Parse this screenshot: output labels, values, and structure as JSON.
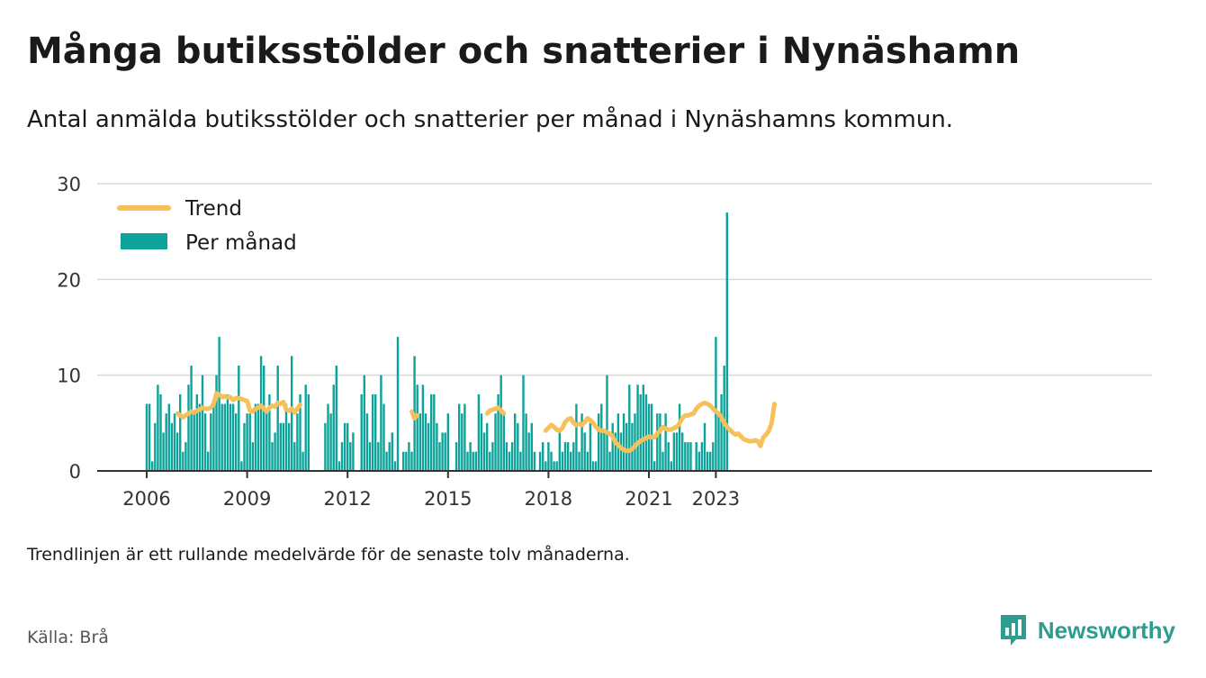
{
  "header": {
    "title": "Många butiksstölder och snatterier i Nynäshamn",
    "subtitle": "Antal anmälda butiksstölder och snatterier per månad i Nynäshamns kommun."
  },
  "footer": {
    "note": "Trendlinjen är ett rullande medelvärde för de senaste tolv månaderna.",
    "source": "Källa: Brå",
    "brand": "Newsworthy"
  },
  "colors": {
    "bars": "#0ea39a",
    "trend": "#f6c15a",
    "grid": "#d9d9d9",
    "axis": "#333333",
    "brand": "#2d9d8f"
  },
  "chart_data": {
    "type": "bar",
    "x_start": "2006-01",
    "x_unit": "month",
    "values": [
      7,
      7,
      1,
      5,
      9,
      8,
      4,
      6,
      7,
      5,
      6,
      4,
      8,
      2,
      3,
      9,
      11,
      6,
      8,
      7,
      10,
      6,
      2,
      6,
      7,
      10,
      14,
      7,
      7,
      8,
      7,
      7,
      6,
      11,
      1,
      5,
      6,
      6,
      3,
      7,
      7,
      12,
      11,
      6,
      8,
      3,
      4,
      11,
      5,
      5,
      7,
      5,
      12,
      3,
      6,
      8,
      2,
      9,
      8,
      0,
      0,
      0,
      0,
      0,
      5,
      7,
      6,
      9,
      11,
      1,
      3,
      5,
      5,
      3,
      4,
      0,
      0,
      8,
      10,
      6,
      3,
      8,
      8,
      3,
      10,
      7,
      2,
      3,
      4,
      1,
      14,
      0,
      2,
      2,
      3,
      2,
      12,
      9,
      6,
      9,
      6,
      5,
      8,
      8,
      5,
      3,
      4,
      4,
      6,
      0,
      0,
      3,
      7,
      6,
      7,
      2,
      3,
      2,
      2,
      8,
      6,
      4,
      5,
      2,
      3,
      6,
      8,
      10,
      6,
      3,
      2,
      3,
      6,
      5,
      2,
      10,
      6,
      4,
      5,
      2,
      0,
      2,
      3,
      1,
      3,
      2,
      1,
      1,
      4,
      2,
      3,
      3,
      2,
      3,
      7,
      2,
      6,
      4,
      2,
      5,
      1,
      1,
      6,
      7,
      4,
      10,
      2,
      5,
      4,
      6,
      4,
      6,
      5,
      9,
      5,
      6,
      9,
      8,
      9,
      8,
      7,
      7,
      1,
      6,
      6,
      2,
      6,
      3,
      1,
      4,
      4,
      7,
      4,
      3,
      3,
      3,
      0,
      3,
      2,
      3,
      5,
      2,
      2,
      3,
      14,
      6,
      8,
      11,
      27
    ],
    "trend": [
      null,
      null,
      null,
      null,
      null,
      null,
      null,
      null,
      null,
      null,
      null,
      6.0,
      5.8,
      5.6,
      5.8,
      6.0,
      6.2,
      6.1,
      6.3,
      6.4,
      6.6,
      6.5,
      6.5,
      6.6,
      7.0,
      8.1,
      8.0,
      7.7,
      7.8,
      7.7,
      7.7,
      7.4,
      7.6,
      7.6,
      7.5,
      7.4,
      7.3,
      6.3,
      6.2,
      6.5,
      6.6,
      6.8,
      6.5,
      6.2,
      6.6,
      6.8,
      6.7,
      7.1,
      7.0,
      7.2,
      6.4,
      6.3,
      6.5,
      6.1,
      6.5,
      6.9,
      null,
      null,
      null,
      null,
      null,
      null,
      null,
      null,
      null,
      null,
      null,
      null,
      null,
      null,
      null,
      null,
      null,
      null,
      null,
      null,
      null,
      null,
      null,
      null,
      null,
      null,
      null,
      null,
      null,
      null,
      null,
      null,
      null,
      null,
      null,
      null,
      null,
      null,
      null,
      6.2,
      5.5,
      5.8,
      null,
      null,
      null,
      null,
      null,
      null,
      null,
      null,
      null,
      null,
      null,
      null,
      null,
      null,
      null,
      null,
      null,
      null,
      null,
      null,
      null,
      null,
      null,
      null,
      6.0,
      6.3,
      6.4,
      6.5,
      6.6,
      6.3,
      6.0,
      null,
      null,
      null,
      null,
      null,
      null,
      null,
      null,
      null,
      null,
      null,
      null,
      null,
      null,
      4.2,
      4.5,
      4.8,
      4.6,
      4.3,
      4.2,
      4.5,
      5.1,
      5.4,
      5.5,
      5.0,
      4.8,
      4.9,
      4.8,
      5.1,
      5.5,
      5.3,
      5.0,
      4.6,
      4.3,
      4.2,
      4.2,
      4.0,
      3.9,
      3.6,
      3.0,
      2.7,
      2.4,
      2.2,
      2.1,
      2.1,
      2.3,
      2.6,
      2.9,
      3.1,
      3.3,
      3.4,
      3.6,
      3.5,
      3.5,
      3.9,
      4.2,
      4.6,
      4.4,
      4.3,
      4.3,
      4.5,
      4.6,
      5.0,
      5.5,
      5.8,
      5.8,
      5.9,
      6.0,
      6.5,
      6.8,
      7.0,
      7.1,
      7.0,
      6.8,
      6.5,
      6.2,
      6.0,
      5.6,
      5.0,
      4.6,
      4.3,
      4.0,
      3.8,
      3.9,
      3.6,
      3.3,
      3.2,
      3.1,
      3.1,
      3.2,
      3.1,
      2.6,
      3.5,
      3.8,
      4.2,
      5.0,
      7.0
    ],
    "x_tick_labels": [
      "2006",
      "2009",
      "2012",
      "2015",
      "2018",
      "2021",
      "2023"
    ],
    "y_tick_labels": [
      "0",
      "10",
      "20",
      "30"
    ],
    "ylim": [
      0,
      30
    ],
    "grid": true,
    "legend": {
      "placement": "top-left",
      "entries": [
        "Trend",
        "Per månad"
      ]
    }
  }
}
